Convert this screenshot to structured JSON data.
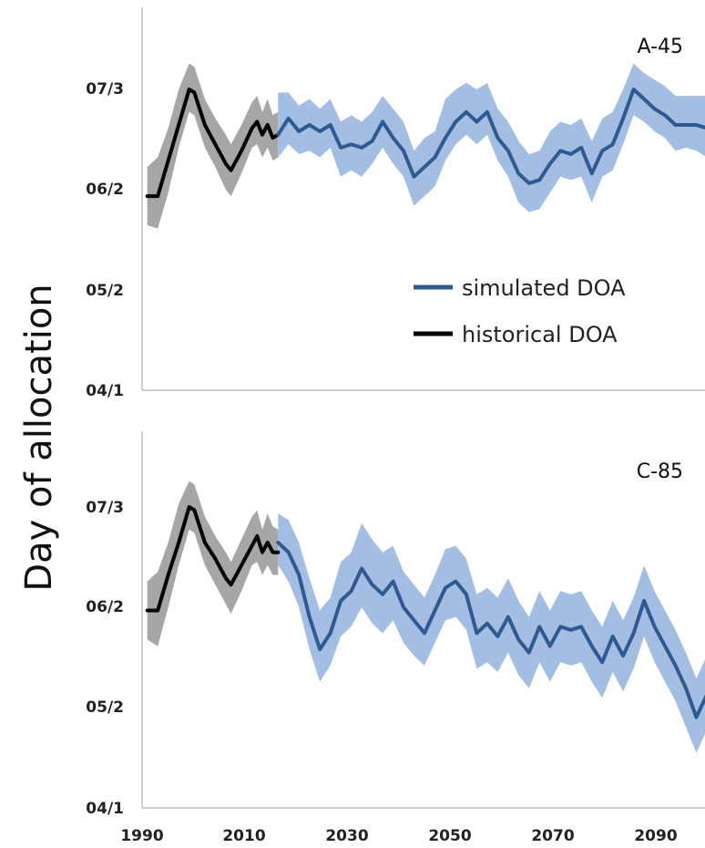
{
  "chart_data": [
    {
      "type": "line",
      "panel_label": "A-45",
      "ylabel": "Day of allocation",
      "y_tick_labels": [
        "04/1",
        "05/2",
        "06/2",
        "07/3"
      ],
      "y_tick_values": [
        91,
        122,
        153,
        184
      ],
      "ylim": [
        91,
        193
      ],
      "xlim": [
        1990,
        2098
      ],
      "x_tick_labels": [],
      "legend": {
        "placement": "center-right",
        "entries": [
          {
            "label": "simulated DOA",
            "color": "#2f5a91"
          },
          {
            "label": "historical DOA",
            "color": "#000000"
          }
        ]
      },
      "series": [
        {
          "name": "historical DOA",
          "color": "#000000",
          "band_color": "#a6a6a6",
          "x": [
            1991,
            1993,
            1995,
            1997,
            1999,
            2000,
            2002,
            2004,
            2006,
            2007,
            2009,
            2011,
            2012,
            2013,
            2014,
            2015,
            2016
          ],
          "y": [
            151,
            151,
            162,
            173,
            184,
            183,
            173,
            167,
            161,
            159,
            165,
            172,
            174,
            170,
            173,
            169,
            170
          ],
          "band": [
            [
              142,
              160
            ],
            [
              141,
              163
            ],
            [
              152,
              172
            ],
            [
              166,
              184
            ],
            [
              177,
              192
            ],
            [
              176,
              191
            ],
            [
              166,
              181
            ],
            [
              160,
              175
            ],
            [
              153,
              170
            ],
            [
              151,
              167
            ],
            [
              158,
              173
            ],
            [
              166,
              180
            ],
            [
              167,
              182
            ],
            [
              163,
              177
            ],
            [
              166,
              181
            ],
            [
              162,
              176
            ],
            [
              163,
              177
            ]
          ]
        },
        {
          "name": "simulated DOA",
          "color": "#2f5a91",
          "band_color": "#a4bee3",
          "x": [
            2016,
            2018,
            2020,
            2022,
            2024,
            2026,
            2028,
            2030,
            2032,
            2034,
            2036,
            2038,
            2040,
            2042,
            2044,
            2046,
            2048,
            2050,
            2052,
            2054,
            2056,
            2058,
            2060,
            2062,
            2064,
            2066,
            2068,
            2070,
            2072,
            2074,
            2076,
            2078,
            2080,
            2082,
            2084,
            2086,
            2088,
            2090,
            2092,
            2094,
            2096,
            2098
          ],
          "y": [
            170,
            175,
            171,
            173,
            171,
            173,
            166,
            167,
            166,
            168,
            174,
            169,
            165,
            157,
            160,
            163,
            169,
            174,
            177,
            174,
            177,
            169,
            165,
            158,
            155,
            156,
            161,
            165,
            164,
            166,
            158,
            165,
            167,
            175,
            184,
            181,
            178,
            176,
            173,
            173,
            173,
            172
          ],
          "band": [
            [
              163,
              183
            ],
            [
              167,
              183
            ],
            [
              164,
              179
            ],
            [
              165,
              181
            ],
            [
              163,
              178
            ],
            [
              166,
              181
            ],
            [
              157,
              174
            ],
            [
              159,
              176
            ],
            [
              157,
              174
            ],
            [
              161,
              177
            ],
            [
              166,
              182
            ],
            [
              161,
              178
            ],
            [
              157,
              174
            ],
            [
              148,
              165
            ],
            [
              151,
              169
            ],
            [
              154,
              171
            ],
            [
              162,
              181
            ],
            [
              167,
              184
            ],
            [
              170,
              186
            ],
            [
              167,
              184
            ],
            [
              170,
              186
            ],
            [
              162,
              178
            ],
            [
              157,
              174
            ],
            [
              149,
              168
            ],
            [
              146,
              164
            ],
            [
              147,
              165
            ],
            [
              152,
              171
            ],
            [
              157,
              174
            ],
            [
              156,
              173
            ],
            [
              157,
              175
            ],
            [
              149,
              168
            ],
            [
              157,
              175
            ],
            [
              159,
              177
            ],
            [
              167,
              184
            ],
            [
              176,
              192
            ],
            [
              174,
              189
            ],
            [
              171,
              187
            ],
            [
              169,
              185
            ],
            [
              165,
              182
            ],
            [
              166,
              182
            ],
            [
              165,
              182
            ],
            [
              163,
              182
            ]
          ]
        }
      ]
    },
    {
      "type": "line",
      "panel_label": "C-85",
      "ylabel": "Day of allocation",
      "y_tick_labels": [
        "04/1",
        "05/2",
        "06/2",
        "07/3"
      ],
      "y_tick_values": [
        91,
        122,
        153,
        184
      ],
      "ylim": [
        91,
        193
      ],
      "xlim": [
        1990,
        2098
      ],
      "x_tick_labels": [
        "1990",
        "2010",
        "2030",
        "2050",
        "2070",
        "2090"
      ],
      "x_tick_values": [
        1990,
        2010,
        2030,
        2050,
        2070,
        2090
      ],
      "series": [
        {
          "name": "historical DOA",
          "color": "#000000",
          "band_color": "#a6a6a6",
          "x": [
            1991,
            1993,
            1995,
            1997,
            1999,
            2000,
            2002,
            2004,
            2006,
            2007,
            2009,
            2011,
            2012,
            2013,
            2014,
            2015,
            2016
          ],
          "y": [
            152,
            152,
            163,
            173,
            184,
            183,
            173,
            168,
            162,
            160,
            166,
            172,
            175,
            170,
            173,
            170,
            170
          ],
          "band": [
            [
              143,
              161
            ],
            [
              141,
              164
            ],
            [
              153,
              173
            ],
            [
              166,
              185
            ],
            [
              177,
              192
            ],
            [
              176,
              191
            ],
            [
              166,
              181
            ],
            [
              160,
              175
            ],
            [
              154,
              170
            ],
            [
              151,
              167
            ],
            [
              158,
              174
            ],
            [
              166,
              181
            ],
            [
              167,
              183
            ],
            [
              163,
              177
            ],
            [
              166,
              182
            ],
            [
              163,
              178
            ],
            [
              163,
              177
            ]
          ]
        },
        {
          "name": "simulated DOA",
          "color": "#2f5a91",
          "band_color": "#a4bee3",
          "x": [
            2016,
            2018,
            2020,
            2022,
            2024,
            2026,
            2028,
            2030,
            2032,
            2034,
            2036,
            2038,
            2040,
            2042,
            2044,
            2046,
            2048,
            2050,
            2052,
            2054,
            2056,
            2058,
            2060,
            2062,
            2064,
            2066,
            2068,
            2070,
            2072,
            2074,
            2076,
            2078,
            2080,
            2082,
            2084,
            2086,
            2088,
            2090,
            2092,
            2094,
            2096,
            2098
          ],
          "y": [
            173,
            170,
            163,
            150,
            140,
            145,
            155,
            158,
            165,
            160,
            157,
            161,
            153,
            149,
            145,
            152,
            159,
            161,
            157,
            145,
            148,
            144,
            150,
            143,
            139,
            147,
            141,
            147,
            146,
            147,
            141,
            136,
            144,
            138,
            145,
            155,
            147,
            141,
            135,
            128,
            119,
            126
          ],
          "band": [
            [
              166,
              182
            ],
            [
              161,
              180
            ],
            [
              153,
              173
            ],
            [
              140,
              162
            ],
            [
              130,
              152
            ],
            [
              135,
              156
            ],
            [
              144,
              167
            ],
            [
              147,
              170
            ],
            [
              153,
              179
            ],
            [
              148,
              174
            ],
            [
              145,
              170
            ],
            [
              149,
              172
            ],
            [
              142,
              164
            ],
            [
              138,
              160
            ],
            [
              135,
              156
            ],
            [
              142,
              163
            ],
            [
              149,
              171
            ],
            [
              150,
              172
            ],
            [
              146,
              168
            ],
            [
              134,
              157
            ],
            [
              136,
              159
            ],
            [
              133,
              156
            ],
            [
              139,
              162
            ],
            [
              132,
              155
            ],
            [
              128,
              150
            ],
            [
              136,
              158
            ],
            [
              130,
              152
            ],
            [
              136,
              158
            ],
            [
              135,
              157
            ],
            [
              136,
              158
            ],
            [
              130,
              152
            ],
            [
              125,
              147
            ],
            [
              133,
              155
            ],
            [
              127,
              149
            ],
            [
              134,
              156
            ],
            [
              144,
              166
            ],
            [
              136,
              158
            ],
            [
              130,
              152
            ],
            [
              124,
              146
            ],
            [
              116,
              139
            ],
            [
              108,
              131
            ],
            [
              115,
              138
            ]
          ]
        }
      ]
    }
  ]
}
